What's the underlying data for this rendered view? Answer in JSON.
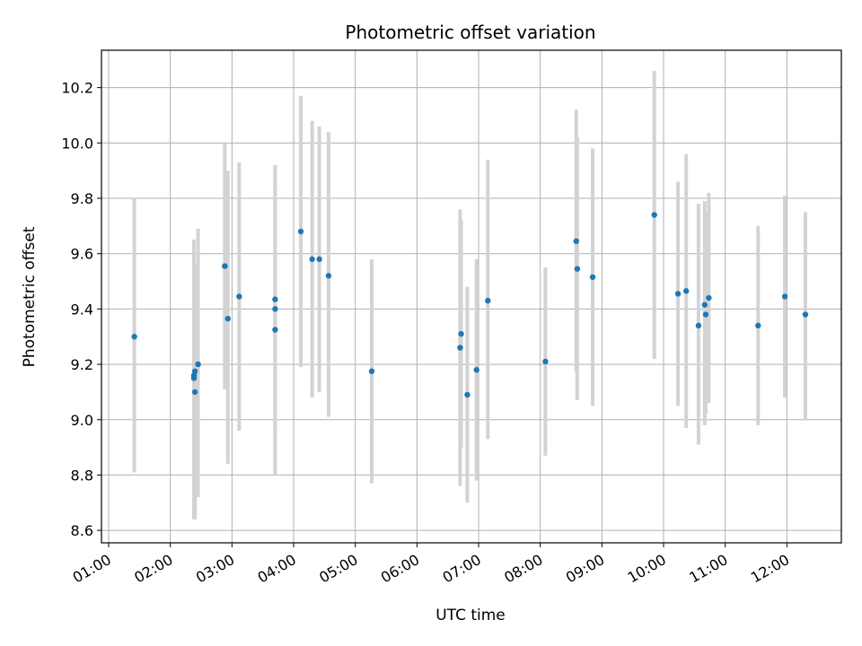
{
  "chart_data": {
    "type": "scatter",
    "title": "Photometric offset variation",
    "xlabel": "UTC time",
    "ylabel": "Photometric offset",
    "x_is_time": true,
    "xlim": [
      "00:53",
      "12:53"
    ],
    "ylim": [
      8.555,
      10.335
    ],
    "xticks": [
      "01:00",
      "02:00",
      "03:00",
      "04:00",
      "05:00",
      "06:00",
      "07:00",
      "08:00",
      "09:00",
      "10:00",
      "11:00",
      "12:00"
    ],
    "yticks": [
      8.6,
      8.8,
      9.0,
      9.2,
      9.4,
      9.6,
      9.8,
      10.0,
      10.2
    ],
    "grid": true,
    "colors": {
      "point": "#1f77b4",
      "errorbar": "#d3d3d3",
      "grid": "#b0b0b0"
    },
    "points": [
      {
        "x": "01:25",
        "y": 9.3,
        "ylo": 8.81,
        "yhi": 9.8
      },
      {
        "x": "02:23",
        "y": 9.15,
        "ylo": 8.64,
        "yhi": 9.65
      },
      {
        "x": "02:23",
        "y": 9.16,
        "ylo": 8.66,
        "yhi": 9.59
      },
      {
        "x": "02:24",
        "y": 9.175,
        "ylo": 8.66,
        "yhi": 9.5
      },
      {
        "x": "02:24",
        "y": 9.1,
        "ylo": 8.64,
        "yhi": 9.56
      },
      {
        "x": "02:27",
        "y": 9.2,
        "ylo": 8.72,
        "yhi": 9.69
      },
      {
        "x": "02:53",
        "y": 9.555,
        "ylo": 9.11,
        "yhi": 10.0
      },
      {
        "x": "02:56",
        "y": 9.365,
        "ylo": 8.84,
        "yhi": 9.9
      },
      {
        "x": "03:07",
        "y": 9.445,
        "ylo": 8.96,
        "yhi": 9.93
      },
      {
        "x": "03:42",
        "y": 9.435,
        "ylo": 8.95,
        "yhi": 9.92
      },
      {
        "x": "03:42",
        "y": 9.4,
        "ylo": 8.9,
        "yhi": 9.88
      },
      {
        "x": "03:42",
        "y": 9.325,
        "ylo": 8.8,
        "yhi": 9.84
      },
      {
        "x": "04:07",
        "y": 9.68,
        "ylo": 9.19,
        "yhi": 10.17
      },
      {
        "x": "04:18",
        "y": 9.58,
        "ylo": 9.08,
        "yhi": 10.08
      },
      {
        "x": "04:25",
        "y": 9.58,
        "ylo": 9.1,
        "yhi": 10.06
      },
      {
        "x": "04:34",
        "y": 9.52,
        "ylo": 9.01,
        "yhi": 10.04
      },
      {
        "x": "05:16",
        "y": 9.175,
        "ylo": 8.77,
        "yhi": 9.58
      },
      {
        "x": "06:42",
        "y": 9.26,
        "ylo": 8.76,
        "yhi": 9.76
      },
      {
        "x": "06:43",
        "y": 9.31,
        "ylo": 8.9,
        "yhi": 9.72
      },
      {
        "x": "06:49",
        "y": 9.09,
        "ylo": 8.7,
        "yhi": 9.48
      },
      {
        "x": "06:58",
        "y": 9.18,
        "ylo": 8.78,
        "yhi": 9.58
      },
      {
        "x": "07:09",
        "y": 9.43,
        "ylo": 8.93,
        "yhi": 9.94
      },
      {
        "x": "08:05",
        "y": 9.21,
        "ylo": 8.87,
        "yhi": 9.55
      },
      {
        "x": "08:35",
        "y": 9.645,
        "ylo": 9.17,
        "yhi": 10.12
      },
      {
        "x": "08:36",
        "y": 9.545,
        "ylo": 9.07,
        "yhi": 10.02
      },
      {
        "x": "08:51",
        "y": 9.515,
        "ylo": 9.05,
        "yhi": 9.98
      },
      {
        "x": "09:51",
        "y": 9.74,
        "ylo": 9.22,
        "yhi": 10.26
      },
      {
        "x": "10:14",
        "y": 9.455,
        "ylo": 9.05,
        "yhi": 9.86
      },
      {
        "x": "10:22",
        "y": 9.465,
        "ylo": 8.97,
        "yhi": 9.96
      },
      {
        "x": "10:34",
        "y": 9.34,
        "ylo": 8.91,
        "yhi": 9.78
      },
      {
        "x": "10:40",
        "y": 9.415,
        "ylo": 8.98,
        "yhi": 9.79
      },
      {
        "x": "10:41",
        "y": 9.38,
        "ylo": 9.02,
        "yhi": 9.75
      },
      {
        "x": "10:44",
        "y": 9.44,
        "ylo": 9.06,
        "yhi": 9.82
      },
      {
        "x": "11:32",
        "y": 9.34,
        "ylo": 8.98,
        "yhi": 9.7
      },
      {
        "x": "11:58",
        "y": 9.445,
        "ylo": 9.08,
        "yhi": 9.81
      },
      {
        "x": "12:18",
        "y": 9.38,
        "ylo": 9.0,
        "yhi": 9.75
      }
    ]
  }
}
